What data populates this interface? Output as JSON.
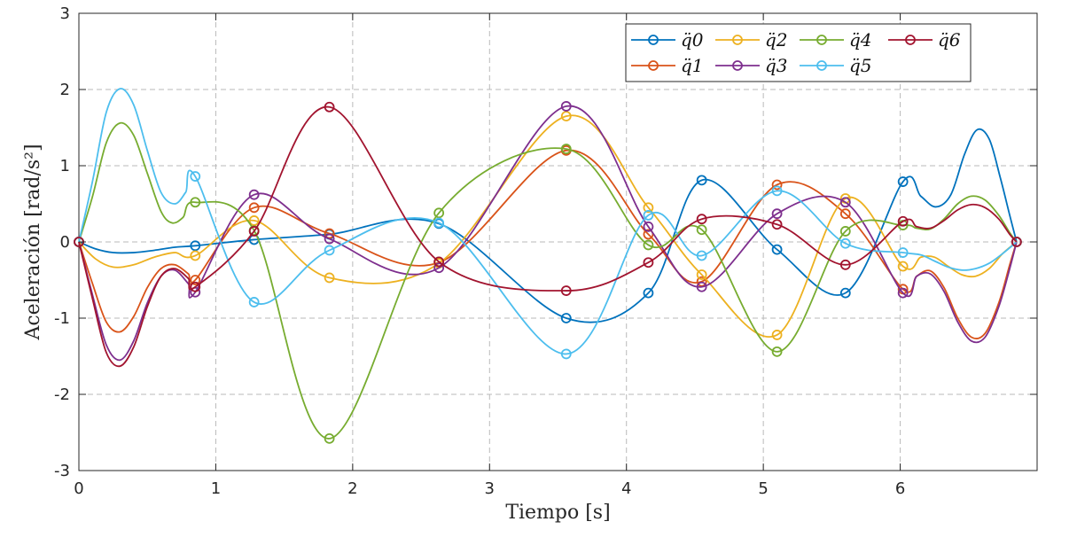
{
  "chart_data": {
    "type": "line",
    "title": "",
    "xlabel": "Tiempo [s]",
    "ylabel": "Aceleración [rad/s²]",
    "xlim": [
      0,
      7
    ],
    "ylim": [
      -3,
      3
    ],
    "xticks": [
      0,
      1,
      2,
      3,
      4,
      5,
      6
    ],
    "yticks": [
      -3,
      -2,
      -1,
      0,
      1,
      2,
      3
    ],
    "grid": true,
    "legend_position": "top-right",
    "series": [
      {
        "name": "q̈0",
        "color": "#0072bd",
        "markers": [
          [
            0,
            0
          ],
          [
            0.85,
            -0.05
          ],
          [
            1.28,
            0.03
          ],
          [
            1.83,
            0.1
          ],
          [
            2.63,
            0.24
          ],
          [
            3.56,
            -1.0
          ],
          [
            4.16,
            -0.67
          ],
          [
            4.55,
            0.81
          ],
          [
            5.1,
            -0.1
          ],
          [
            5.6,
            -0.67
          ],
          [
            6.02,
            0.79
          ],
          [
            6.85,
            0
          ]
        ],
        "curve": [
          [
            0,
            0
          ],
          [
            0.12,
            -0.09
          ],
          [
            0.25,
            -0.14
          ],
          [
            0.4,
            -0.14
          ],
          [
            0.55,
            -0.11
          ],
          [
            0.7,
            -0.07
          ],
          [
            0.85,
            -0.05
          ],
          [
            1.28,
            0.03
          ],
          [
            1.83,
            0.1
          ],
          [
            2.63,
            0.24
          ],
          [
            3.56,
            -1.0
          ],
          [
            4.16,
            -0.67
          ],
          [
            4.55,
            0.81
          ],
          [
            5.1,
            -0.1
          ],
          [
            5.6,
            -0.67
          ],
          [
            6.02,
            0.79
          ],
          [
            6.15,
            0.6
          ],
          [
            6.26,
            0.46
          ],
          [
            6.37,
            0.62
          ],
          [
            6.47,
            1.15
          ],
          [
            6.56,
            1.47
          ],
          [
            6.65,
            1.35
          ],
          [
            6.73,
            0.85
          ],
          [
            6.8,
            0.35
          ],
          [
            6.85,
            0
          ]
        ]
      },
      {
        "name": "q̈1",
        "color": "#d95319",
        "markers": [
          [
            0,
            0
          ],
          [
            0.85,
            -0.5
          ],
          [
            1.28,
            0.45
          ],
          [
            1.83,
            0.11
          ],
          [
            2.63,
            -0.27
          ],
          [
            3.56,
            1.2
          ],
          [
            4.16,
            0.1
          ],
          [
            4.55,
            -0.52
          ],
          [
            5.1,
            0.75
          ],
          [
            5.6,
            0.37
          ],
          [
            6.02,
            -0.62
          ],
          [
            6.85,
            0
          ]
        ],
        "curve": [
          [
            0,
            0
          ],
          [
            0.1,
            -0.55
          ],
          [
            0.2,
            -1.05
          ],
          [
            0.3,
            -1.18
          ],
          [
            0.4,
            -0.98
          ],
          [
            0.5,
            -0.6
          ],
          [
            0.6,
            -0.35
          ],
          [
            0.7,
            -0.3
          ],
          [
            0.8,
            -0.42
          ],
          [
            0.85,
            -0.5
          ],
          [
            1.28,
            0.45
          ],
          [
            1.83,
            0.11
          ],
          [
            2.63,
            -0.27
          ],
          [
            3.56,
            1.2
          ],
          [
            4.16,
            0.1
          ],
          [
            4.55,
            -0.52
          ],
          [
            5.1,
            0.75
          ],
          [
            5.6,
            0.37
          ],
          [
            6.02,
            -0.62
          ],
          [
            6.12,
            -0.45
          ],
          [
            6.22,
            -0.38
          ],
          [
            6.32,
            -0.6
          ],
          [
            6.42,
            -1.0
          ],
          [
            6.52,
            -1.25
          ],
          [
            6.62,
            -1.2
          ],
          [
            6.72,
            -0.8
          ],
          [
            6.8,
            -0.3
          ],
          [
            6.85,
            0
          ]
        ]
      },
      {
        "name": "q̈2",
        "color": "#edb120",
        "markers": [
          [
            0,
            0
          ],
          [
            0.85,
            -0.18
          ],
          [
            1.28,
            0.28
          ],
          [
            1.83,
            -0.47
          ],
          [
            2.63,
            -0.28
          ],
          [
            3.56,
            1.65
          ],
          [
            4.16,
            0.45
          ],
          [
            4.55,
            -0.43
          ],
          [
            5.1,
            -1.22
          ],
          [
            5.6,
            0.57
          ],
          [
            6.02,
            -0.32
          ],
          [
            6.85,
            0
          ]
        ],
        "curve": [
          [
            0,
            0
          ],
          [
            0.12,
            -0.22
          ],
          [
            0.25,
            -0.33
          ],
          [
            0.4,
            -0.3
          ],
          [
            0.55,
            -0.2
          ],
          [
            0.7,
            -0.14
          ],
          [
            0.85,
            -0.18
          ],
          [
            1.28,
            0.28
          ],
          [
            1.83,
            -0.47
          ],
          [
            2.63,
            -0.28
          ],
          [
            3.56,
            1.65
          ],
          [
            4.16,
            0.45
          ],
          [
            4.55,
            -0.43
          ],
          [
            5.1,
            -1.22
          ],
          [
            5.6,
            0.57
          ],
          [
            6.02,
            -0.32
          ],
          [
            6.15,
            -0.2
          ],
          [
            6.25,
            -0.2
          ],
          [
            6.35,
            -0.32
          ],
          [
            6.45,
            -0.43
          ],
          [
            6.55,
            -0.45
          ],
          [
            6.65,
            -0.35
          ],
          [
            6.75,
            -0.15
          ],
          [
            6.85,
            0
          ]
        ]
      },
      {
        "name": "q̈3",
        "color": "#7e2f8e",
        "markers": [
          [
            0,
            0
          ],
          [
            0.85,
            -0.66
          ],
          [
            1.28,
            0.62
          ],
          [
            1.83,
            0.04
          ],
          [
            2.63,
            -0.34
          ],
          [
            3.56,
            1.78
          ],
          [
            4.16,
            0.2
          ],
          [
            4.55,
            -0.59
          ],
          [
            5.1,
            0.37
          ],
          [
            5.6,
            0.52
          ],
          [
            6.02,
            -0.67
          ],
          [
            6.85,
            0
          ]
        ],
        "curve": [
          [
            0,
            0
          ],
          [
            0.1,
            -0.7
          ],
          [
            0.2,
            -1.35
          ],
          [
            0.3,
            -1.55
          ],
          [
            0.4,
            -1.3
          ],
          [
            0.5,
            -0.8
          ],
          [
            0.6,
            -0.45
          ],
          [
            0.7,
            -0.37
          ],
          [
            0.8,
            -0.55
          ],
          [
            0.85,
            -0.66
          ],
          [
            1.28,
            0.62
          ],
          [
            1.83,
            0.04
          ],
          [
            2.63,
            -0.34
          ],
          [
            3.56,
            1.78
          ],
          [
            4.16,
            0.2
          ],
          [
            4.55,
            -0.59
          ],
          [
            5.1,
            0.37
          ],
          [
            5.6,
            0.52
          ],
          [
            6.02,
            -0.67
          ],
          [
            6.12,
            -0.45
          ],
          [
            6.22,
            -0.42
          ],
          [
            6.32,
            -0.65
          ],
          [
            6.42,
            -1.05
          ],
          [
            6.52,
            -1.3
          ],
          [
            6.62,
            -1.25
          ],
          [
            6.72,
            -0.85
          ],
          [
            6.8,
            -0.35
          ],
          [
            6.85,
            0
          ]
        ]
      },
      {
        "name": "q̈4",
        "color": "#77ac30",
        "markers": [
          [
            0,
            0
          ],
          [
            0.85,
            0.52
          ],
          [
            1.28,
            0.15
          ],
          [
            1.83,
            -2.58
          ],
          [
            2.63,
            0.38
          ],
          [
            3.56,
            1.22
          ],
          [
            4.16,
            -0.04
          ],
          [
            4.55,
            0.16
          ],
          [
            5.1,
            -1.44
          ],
          [
            5.6,
            0.14
          ],
          [
            6.02,
            0.22
          ],
          [
            6.85,
            0
          ]
        ],
        "curve": [
          [
            0,
            0
          ],
          [
            0.1,
            0.6
          ],
          [
            0.2,
            1.3
          ],
          [
            0.3,
            1.56
          ],
          [
            0.4,
            1.4
          ],
          [
            0.5,
            0.9
          ],
          [
            0.6,
            0.4
          ],
          [
            0.68,
            0.25
          ],
          [
            0.76,
            0.32
          ],
          [
            0.85,
            0.52
          ],
          [
            1.28,
            0.15
          ],
          [
            1.83,
            -2.58
          ],
          [
            2.63,
            0.38
          ],
          [
            3.56,
            1.22
          ],
          [
            4.16,
            -0.04
          ],
          [
            4.55,
            0.16
          ],
          [
            5.1,
            -1.44
          ],
          [
            5.6,
            0.14
          ],
          [
            6.02,
            0.22
          ],
          [
            6.12,
            0.18
          ],
          [
            6.22,
            0.17
          ],
          [
            6.32,
            0.3
          ],
          [
            6.42,
            0.5
          ],
          [
            6.52,
            0.6
          ],
          [
            6.62,
            0.55
          ],
          [
            6.72,
            0.35
          ],
          [
            6.8,
            0.12
          ],
          [
            6.85,
            0
          ]
        ]
      },
      {
        "name": "q̈5",
        "color": "#4dbeee",
        "markers": [
          [
            0,
            0
          ],
          [
            0.85,
            0.86
          ],
          [
            1.28,
            -0.79
          ],
          [
            1.83,
            -0.11
          ],
          [
            2.63,
            0.25
          ],
          [
            3.56,
            -1.47
          ],
          [
            4.16,
            0.35
          ],
          [
            4.55,
            -0.18
          ],
          [
            5.1,
            0.67
          ],
          [
            5.6,
            -0.02
          ],
          [
            6.02,
            -0.14
          ],
          [
            6.85,
            0
          ]
        ],
        "curve": [
          [
            0,
            0
          ],
          [
            0.1,
            0.8
          ],
          [
            0.2,
            1.7
          ],
          [
            0.3,
            2.01
          ],
          [
            0.4,
            1.8
          ],
          [
            0.5,
            1.2
          ],
          [
            0.6,
            0.65
          ],
          [
            0.7,
            0.5
          ],
          [
            0.78,
            0.65
          ],
          [
            0.85,
            0.86
          ],
          [
            1.28,
            -0.79
          ],
          [
            1.83,
            -0.11
          ],
          [
            2.63,
            0.25
          ],
          [
            3.56,
            -1.47
          ],
          [
            4.16,
            0.35
          ],
          [
            4.55,
            -0.18
          ],
          [
            5.1,
            0.67
          ],
          [
            5.6,
            -0.02
          ],
          [
            6.02,
            -0.14
          ],
          [
            6.15,
            -0.17
          ],
          [
            6.25,
            -0.25
          ],
          [
            6.35,
            -0.33
          ],
          [
            6.45,
            -0.37
          ],
          [
            6.55,
            -0.35
          ],
          [
            6.65,
            -0.28
          ],
          [
            6.75,
            -0.15
          ],
          [
            6.85,
            0
          ]
        ]
      },
      {
        "name": "q̈6",
        "color": "#a2142f",
        "markers": [
          [
            0,
            0
          ],
          [
            0.85,
            -0.59
          ],
          [
            1.28,
            0.14
          ],
          [
            1.83,
            1.77
          ],
          [
            2.63,
            -0.26
          ],
          [
            3.56,
            -0.64
          ],
          [
            4.16,
            -0.27
          ],
          [
            4.55,
            0.3
          ],
          [
            5.1,
            0.23
          ],
          [
            5.6,
            -0.3
          ],
          [
            6.02,
            0.27
          ],
          [
            6.85,
            0
          ]
        ],
        "curve": [
          [
            0,
            0
          ],
          [
            0.1,
            -0.75
          ],
          [
            0.2,
            -1.45
          ],
          [
            0.3,
            -1.63
          ],
          [
            0.4,
            -1.38
          ],
          [
            0.5,
            -0.85
          ],
          [
            0.6,
            -0.45
          ],
          [
            0.7,
            -0.35
          ],
          [
            0.8,
            -0.48
          ],
          [
            0.85,
            -0.59
          ],
          [
            1.28,
            0.14
          ],
          [
            1.83,
            1.77
          ],
          [
            2.63,
            -0.26
          ],
          [
            3.56,
            -0.64
          ],
          [
            4.16,
            -0.27
          ],
          [
            4.55,
            0.3
          ],
          [
            5.1,
            0.23
          ],
          [
            5.6,
            -0.3
          ],
          [
            6.02,
            0.27
          ],
          [
            6.12,
            0.2
          ],
          [
            6.22,
            0.18
          ],
          [
            6.32,
            0.28
          ],
          [
            6.42,
            0.42
          ],
          [
            6.52,
            0.49
          ],
          [
            6.62,
            0.45
          ],
          [
            6.72,
            0.3
          ],
          [
            6.8,
            0.1
          ],
          [
            6.85,
            0
          ]
        ]
      }
    ]
  }
}
